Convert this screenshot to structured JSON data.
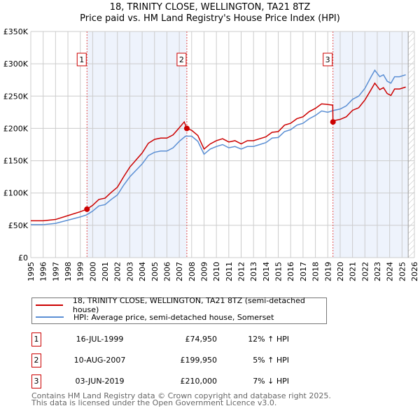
{
  "chart_data": {
    "type": "line",
    "title": "18, TRINITY CLOSE, WELLINGTON, TA21 8TZ",
    "subtitle": "Price paid vs. HM Land Registry's House Price Index (HPI)",
    "xlim": [
      1995,
      2026
    ],
    "ylim": [
      0,
      350000
    ],
    "x_ticks": [
      "1995",
      "1996",
      "1997",
      "1998",
      "1999",
      "2000",
      "2001",
      "2002",
      "2003",
      "2004",
      "2005",
      "2006",
      "2007",
      "2008",
      "2009",
      "2010",
      "2011",
      "2012",
      "2013",
      "2014",
      "2015",
      "2016",
      "2017",
      "2018",
      "2019",
      "2020",
      "2021",
      "2022",
      "2023",
      "2024",
      "2025",
      "2026"
    ],
    "y_ticks": [
      {
        "v": 0,
        "label": "£0"
      },
      {
        "v": 50000,
        "label": "£50K"
      },
      {
        "v": 100000,
        "label": "£100K"
      },
      {
        "v": 150000,
        "label": "£150K"
      },
      {
        "v": 200000,
        "label": "£200K"
      },
      {
        "v": 250000,
        "label": "£250K"
      },
      {
        "v": 300000,
        "label": "£300K"
      },
      {
        "v": 350000,
        "label": "£350K"
      }
    ],
    "grid": true,
    "shaded_ranges": [
      [
        1999.54,
        2007.61
      ],
      [
        2019.42,
        2025.5
      ]
    ],
    "hatched_from": 2025.5,
    "series": [
      {
        "name": "18, TRINITY CLOSE, WELLINGTON, TA21 8TZ (semi-detached house)",
        "color": "#cc0000",
        "x": [
          1995,
          1996,
          1997,
          1998,
          1999,
          1999.54,
          2000,
          2000.5,
          2001,
          2001.5,
          2002,
          2002.5,
          2003,
          2003.5,
          2004,
          2004.5,
          2005,
          2005.5,
          2006,
          2006.5,
          2007,
          2007.4,
          2007.61,
          2008,
          2008.5,
          2009,
          2009.5,
          2010,
          2010.5,
          2011,
          2011.5,
          2012,
          2012.5,
          2013,
          2013.5,
          2014,
          2014.5,
          2015,
          2015.5,
          2016,
          2016.5,
          2017,
          2017.5,
          2018,
          2018.5,
          2019,
          2019.4,
          2019.42,
          2019.5,
          2020,
          2020.5,
          2021,
          2021.5,
          2022,
          2022.5,
          2022.8,
          2023.2,
          2023.5,
          2023.8,
          2024.1,
          2024.4,
          2024.8,
          2025.3
        ],
        "values": [
          57000,
          57000,
          59000,
          65000,
          71000,
          74950,
          81000,
          90000,
          92000,
          101000,
          109000,
          125000,
          140000,
          151000,
          162000,
          177000,
          183000,
          185000,
          185000,
          190000,
          201000,
          210000,
          199950,
          197000,
          189000,
          168000,
          176000,
          181000,
          184000,
          179000,
          181000,
          176000,
          181000,
          181000,
          184000,
          187000,
          194000,
          195000,
          205000,
          208000,
          215000,
          218000,
          226000,
          231000,
          238000,
          237000,
          236000,
          210000,
          212000,
          214000,
          218000,
          228000,
          232000,
          244000,
          260000,
          270000,
          260000,
          263000,
          254000,
          251000,
          261000,
          261000,
          264000
        ]
      },
      {
        "name": "HPI: Average price, semi-detached house, Somerset",
        "color": "#5b8fd4",
        "x": [
          1995,
          1996,
          1997,
          1998,
          1999,
          1999.5,
          2000,
          2000.5,
          2001,
          2001.5,
          2002,
          2002.5,
          2003,
          2003.5,
          2004,
          2004.5,
          2005,
          2005.5,
          2006,
          2006.5,
          2007,
          2007.5,
          2008,
          2008.5,
          2009,
          2009.5,
          2010,
          2010.5,
          2011,
          2011.5,
          2012,
          2012.5,
          2013,
          2013.5,
          2014,
          2014.5,
          2015,
          2015.5,
          2016,
          2016.5,
          2017,
          2017.5,
          2018,
          2018.5,
          2019,
          2019.5,
          2020,
          2020.5,
          2021,
          2021.5,
          2022,
          2022.5,
          2022.8,
          2023.2,
          2023.5,
          2023.8,
          2024.1,
          2024.4,
          2024.8,
          2025.3
        ],
        "values": [
          51000,
          51000,
          53000,
          58000,
          63000,
          66000,
          72000,
          80000,
          82000,
          90000,
          97000,
          112000,
          125000,
          135000,
          145000,
          158000,
          163000,
          165000,
          165000,
          170000,
          180000,
          188000,
          188000,
          180000,
          160000,
          168000,
          172000,
          175000,
          170000,
          172000,
          168000,
          172000,
          172000,
          175000,
          178000,
          185000,
          186000,
          195000,
          198000,
          205000,
          208000,
          215000,
          220000,
          227000,
          225000,
          228000,
          230000,
          235000,
          245000,
          250000,
          262000,
          280000,
          290000,
          280000,
          283000,
          273000,
          270000,
          280000,
          280000,
          283000
        ]
      }
    ],
    "sales": [
      {
        "n": "1",
        "x": 1999.54,
        "price": 74950,
        "date": "16-JUL-1999",
        "price_label": "£74,950",
        "hpi": "12% ↑ HPI"
      },
      {
        "n": "2",
        "x": 2007.61,
        "price": 199950,
        "date": "10-AUG-2007",
        "price_label": "£199,950",
        "hpi": "5% ↑ HPI"
      },
      {
        "n": "3",
        "x": 2019.42,
        "price": 210000,
        "date": "03-JUN-2019",
        "price_label": "£210,000",
        "hpi": "7% ↓ HPI"
      }
    ]
  },
  "footer": {
    "line1": "Contains HM Land Registry data © Crown copyright and database right 2025.",
    "line2": "This data is licensed under the Open Government Licence v3.0."
  }
}
